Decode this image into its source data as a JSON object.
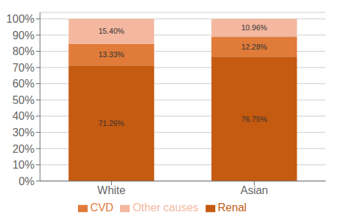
{
  "chart_data": {
    "type": "bar",
    "stacked": true,
    "categories": [
      "White",
      "Asian"
    ],
    "series": [
      {
        "name": "Renal",
        "color": "#c55a11",
        "values": [
          71.26,
          76.75
        ],
        "value_labels": [
          "71.26%",
          "76.75%"
        ]
      },
      {
        "name": "CVD",
        "color": "#e07b39",
        "values": [
          13.33,
          12.28
        ],
        "value_labels": [
          "13.33%",
          "12.28%"
        ]
      },
      {
        "name": "Other causes",
        "color": "#f4b7a0",
        "values": [
          15.4,
          10.96
        ],
        "value_labels": [
          "15.40%",
          "10.96%"
        ]
      }
    ],
    "ylim": [
      0,
      104
    ],
    "yticks": [
      {
        "value": 0,
        "label": "0%"
      },
      {
        "value": 10,
        "label": "10%"
      },
      {
        "value": 20,
        "label": "20%"
      },
      {
        "value": 30,
        "label": "30%"
      },
      {
        "value": 40,
        "label": "40%"
      },
      {
        "value": 50,
        "label": "50%"
      },
      {
        "value": 60,
        "label": "60%"
      },
      {
        "value": 70,
        "label": "70%"
      },
      {
        "value": 80,
        "label": "80%"
      },
      {
        "value": 90,
        "label": "90%"
      },
      {
        "value": 100,
        "label": "100%"
      }
    ],
    "grid": true,
    "legend": "bottom",
    "data_labels": true
  }
}
